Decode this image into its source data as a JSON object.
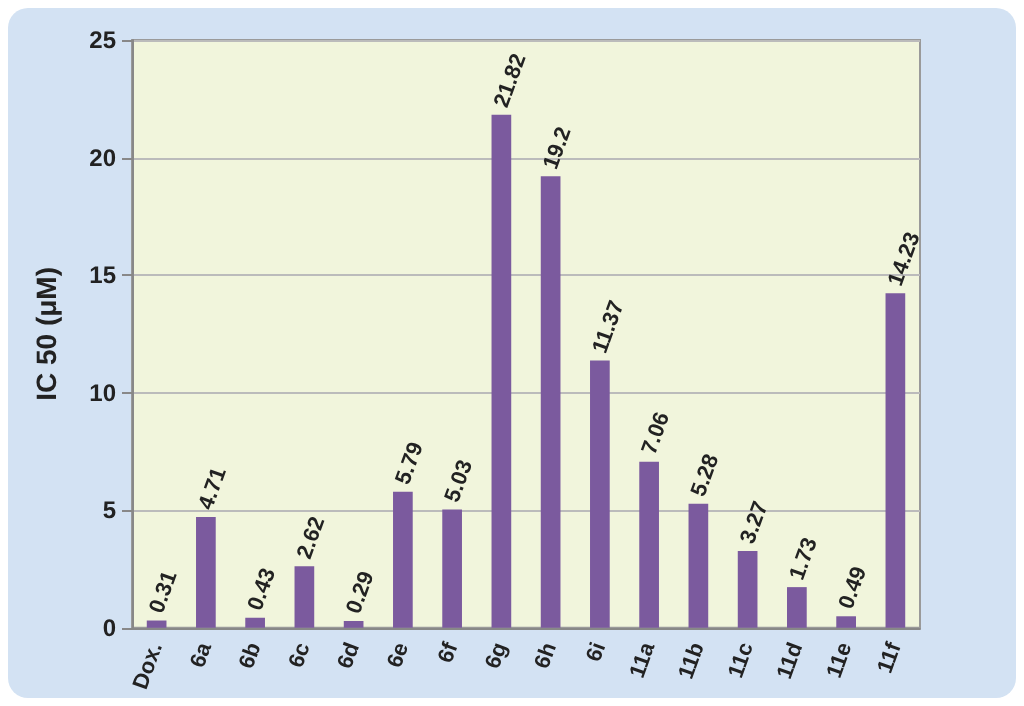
{
  "chart_data": {
    "type": "bar",
    "ylabel": "IC 50 (μM)",
    "categories": [
      "Dox.",
      "6a",
      "6b",
      "6c",
      "6d",
      "6e",
      "6f",
      "6g",
      "6h",
      "6i",
      "11a",
      "11b",
      "11c",
      "11d",
      "11e",
      "11f"
    ],
    "values": [
      0.31,
      4.71,
      0.43,
      2.62,
      0.29,
      5.79,
      5.03,
      21.82,
      19.2,
      11.37,
      7.06,
      5.28,
      3.27,
      1.73,
      0.49,
      14.23
    ],
    "color": "#7b5a9e",
    "ylim": [
      0,
      25
    ],
    "yticks": [
      0,
      5,
      10,
      15,
      20,
      25
    ],
    "grid": "y",
    "data_labels": true
  }
}
